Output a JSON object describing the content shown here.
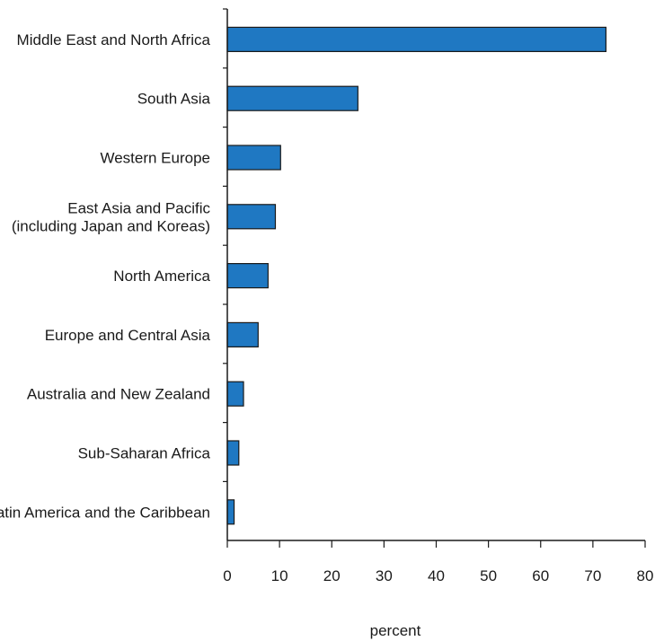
{
  "chart_data": {
    "type": "bar",
    "orientation": "horizontal",
    "categories": [
      "Middle East and North Africa",
      "South Asia",
      "Western Europe",
      "East Asia and Pacific\n(including Japan and Koreas)",
      "North America",
      "Europe and Central Asia",
      "Australia and New Zealand",
      "Sub-Saharan Africa",
      "Latin America and the Caribbean"
    ],
    "values": [
      72.5,
      25,
      10.2,
      9.2,
      7.8,
      5.9,
      3.1,
      2.2,
      1.3
    ],
    "xlabel": "percent",
    "ylabel": "",
    "xlim": [
      0,
      80
    ],
    "xticks": [
      0,
      10,
      20,
      30,
      40,
      50,
      60,
      70,
      80
    ],
    "grid": false,
    "legend": "none",
    "bar_color": "#1f78c2",
    "bar_edge_color": "#1a1a1a"
  }
}
